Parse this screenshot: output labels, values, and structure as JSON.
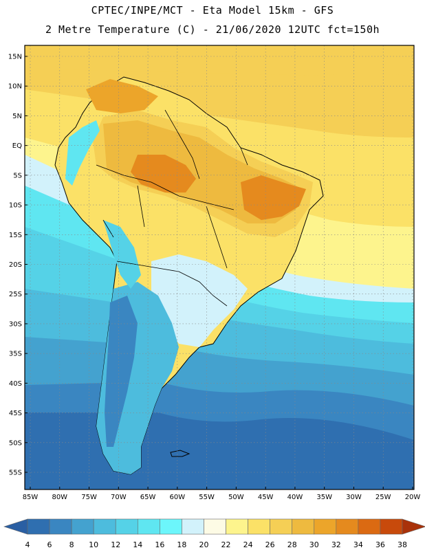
{
  "title": {
    "line1": "CPTEC/INPE/MCT -  Eta Model 15km - GFS",
    "line2": "2 Metre Temperature (C) - 21/06/2020 12UTC fct=150h"
  },
  "axes": {
    "lat_labels": [
      "15N",
      "10N",
      "5N",
      "EQ",
      "5S",
      "10S",
      "15S",
      "20S",
      "25S",
      "30S",
      "35S",
      "40S",
      "45S",
      "50S",
      "55S"
    ],
    "lon_labels": [
      "85W",
      "80W",
      "75W",
      "70W",
      "65W",
      "60W",
      "55W",
      "50W",
      "45W",
      "40W",
      "35W",
      "30W",
      "25W",
      "20W"
    ],
    "lat_values": [
      15,
      10,
      5,
      0,
      -5,
      -10,
      -15,
      -20,
      -25,
      -30,
      -35,
      -40,
      -45,
      -50,
      -55
    ],
    "lon_values": [
      -85,
      -80,
      -75,
      -70,
      -65,
      -60,
      -55,
      -50,
      -45,
      -40,
      -35,
      -30,
      -25,
      -20
    ]
  },
  "colorbar": {
    "labels": [
      "4",
      "6",
      "8",
      "10",
      "12",
      "14",
      "16",
      "18",
      "20",
      "22",
      "24",
      "26",
      "28",
      "30",
      "32",
      "34",
      "36",
      "38"
    ],
    "colors": [
      "#2a5fa3",
      "#2f6fb0",
      "#3a86c1",
      "#44a2cf",
      "#4dbcdd",
      "#55d2e7",
      "#5fe6f1",
      "#6cf6fb",
      "#d2f2fb",
      "#fdfbe5",
      "#fdf48d",
      "#fbe167",
      "#f5cf55",
      "#eeba3f",
      "#eca52a",
      "#e58a1e",
      "#db6a12",
      "#c84a0b",
      "#a9320a"
    ]
  }
}
